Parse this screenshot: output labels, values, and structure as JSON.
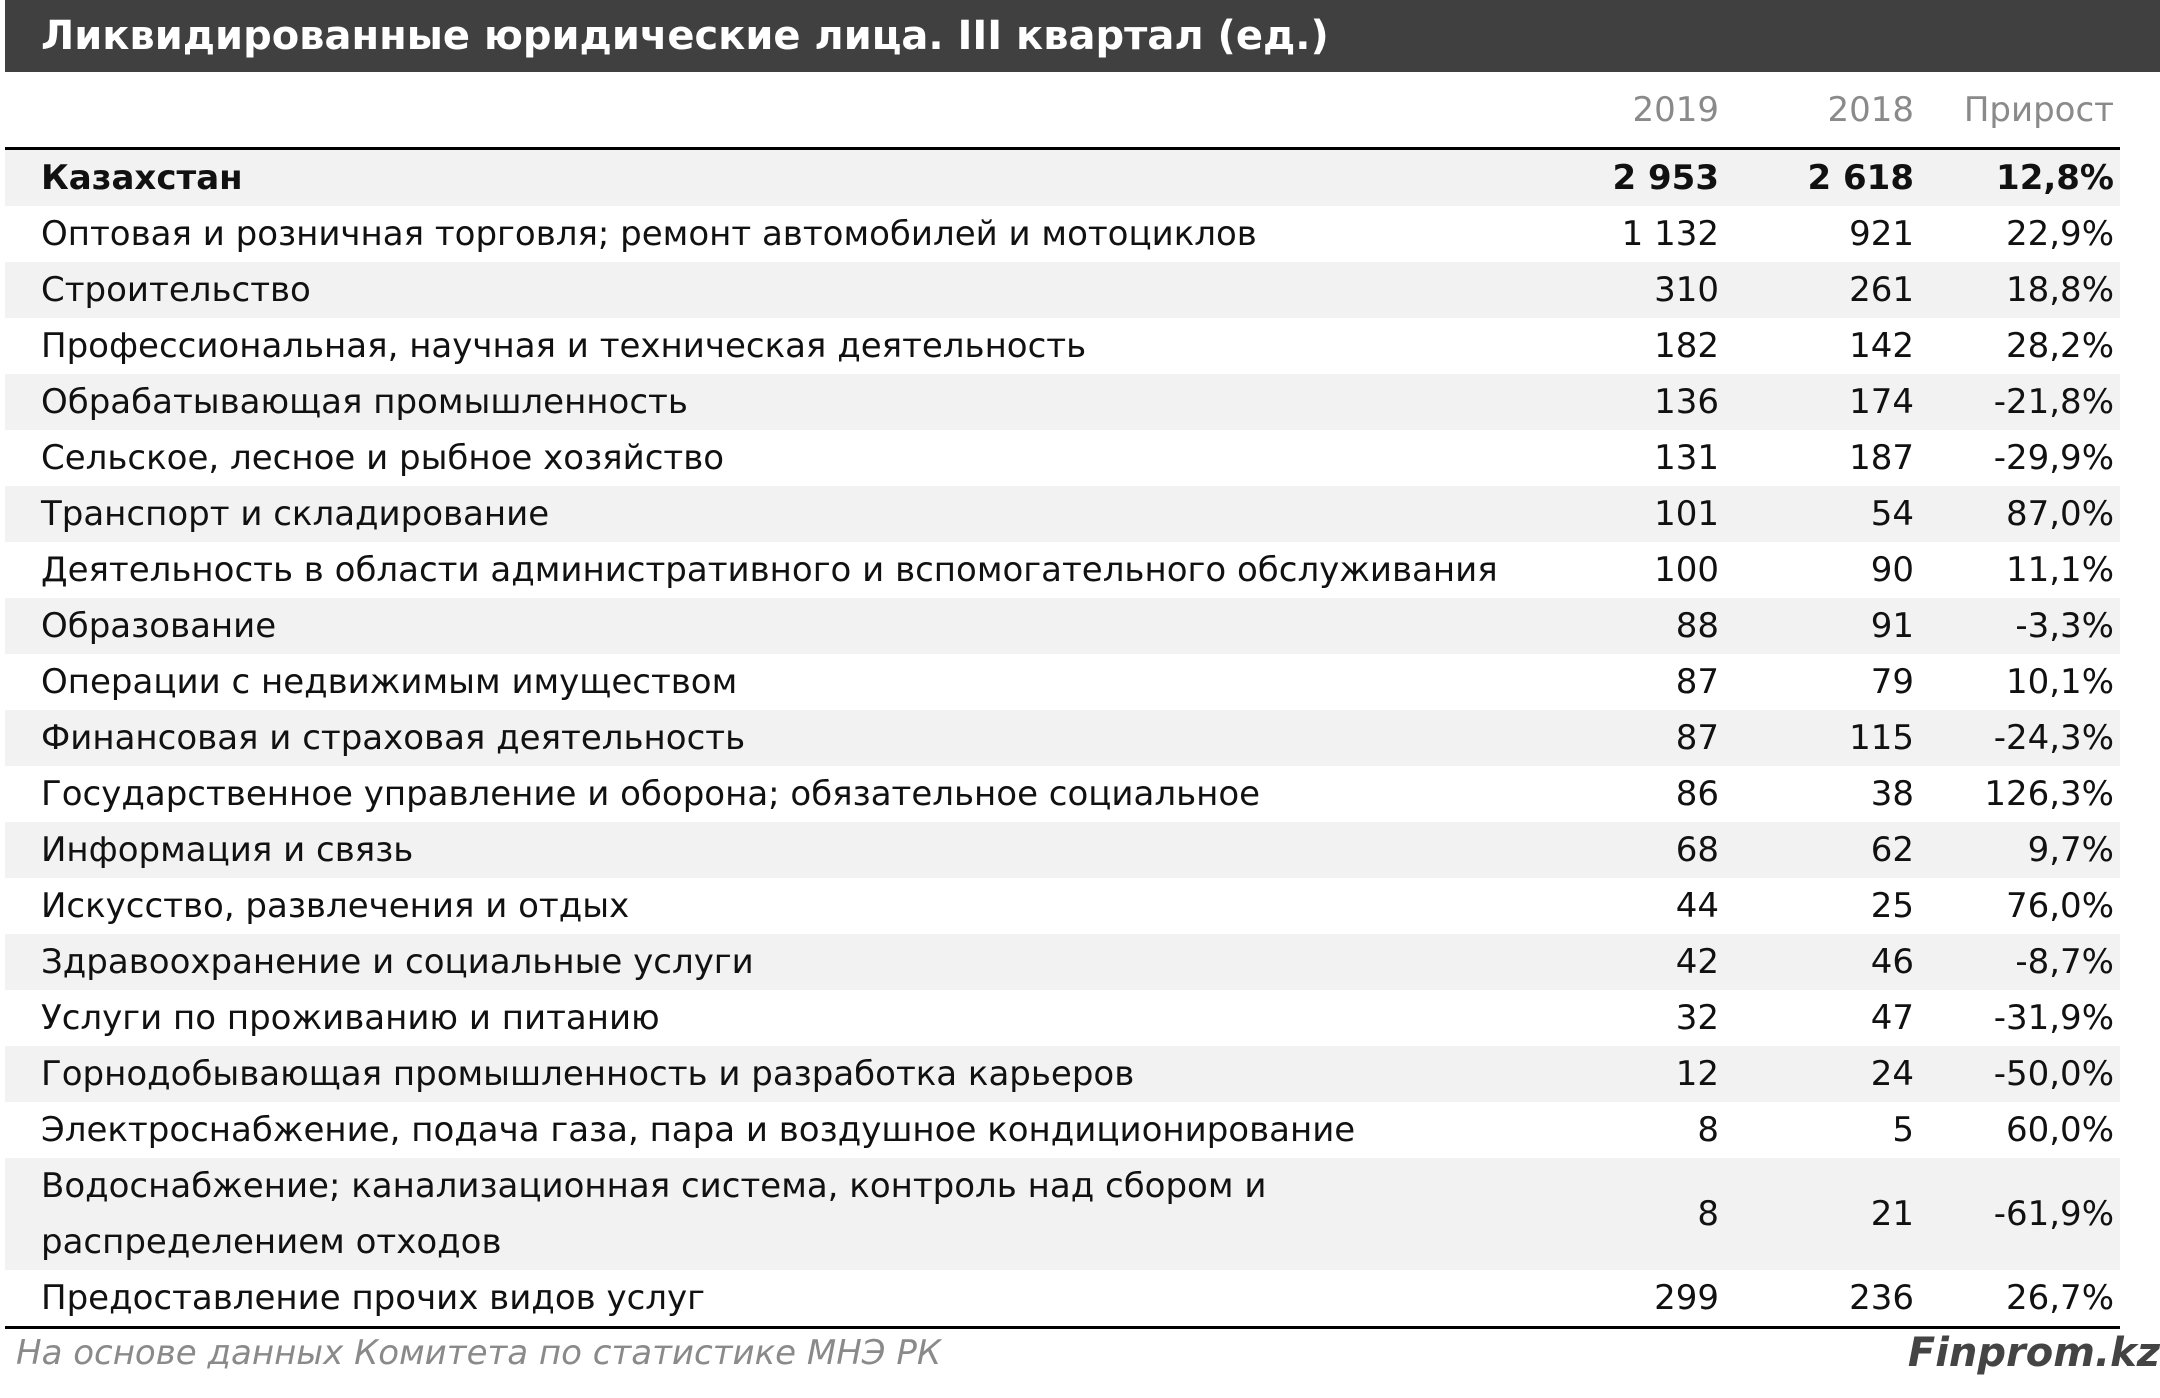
{
  "header": {
    "title": "Ликвидированные юридические лица. III квартал (ед.)"
  },
  "table": {
    "columns": [
      "2019",
      "2018",
      "Прирост"
    ],
    "rows": [
      [
        "Казахстан",
        "2 953",
        "2 618",
        "12,8%"
      ],
      [
        "Оптовая и розничная торговля; ремонт автомобилей и мотоциклов",
        "1 132",
        "921",
        "22,9%"
      ],
      [
        "Строительство",
        "310",
        "261",
        "18,8%"
      ],
      [
        "Профессиональная, научная и техническая деятельность",
        "182",
        "142",
        "28,2%"
      ],
      [
        "Обрабатывающая промышленность",
        "136",
        "174",
        "-21,8%"
      ],
      [
        "Сельское, лесное и рыбное хозяйство",
        "131",
        "187",
        "-29,9%"
      ],
      [
        "Транспорт и складирование",
        "101",
        "54",
        "87,0%"
      ],
      [
        "Деятельность в области административного и вспомогательного обслуживания",
        "100",
        "90",
        "11,1%"
      ],
      [
        "Образование",
        "88",
        "91",
        "-3,3%"
      ],
      [
        "Операции с недвижимым имуществом",
        "87",
        "79",
        "10,1%"
      ],
      [
        "Финансовая и страховая деятельность",
        "87",
        "115",
        "-24,3%"
      ],
      [
        "Государственное управление и оборона; обязательное социальное",
        "86",
        "38",
        "126,3%"
      ],
      [
        "Информация и связь",
        "68",
        "62",
        "9,7%"
      ],
      [
        "Искусство, развлечения и отдых",
        "44",
        "25",
        "76,0%"
      ],
      [
        "Здравоохранение и социальные услуги",
        "42",
        "46",
        "-8,7%"
      ],
      [
        "Услуги по проживанию и питанию",
        "32",
        "47",
        "-31,9%"
      ],
      [
        "Горнодобывающая промышленность и разработка карьеров",
        "12",
        "24",
        "-50,0%"
      ],
      [
        "Электроснабжение, подача газа, пара и воздушное кондиционирование",
        "8",
        "5",
        "60,0%"
      ],
      [
        "Водоснабжение; канализационная система, контроль над сбором и распределением отходов",
        "8",
        "21",
        "-61,9%"
      ],
      [
        "Предоставление прочих видов услуг",
        "299",
        "236",
        "26,7%"
      ]
    ]
  },
  "footer": {
    "source": "На основе данных  Комитета по статистике МНЭ РК",
    "brand": "Finprom.kz"
  }
}
